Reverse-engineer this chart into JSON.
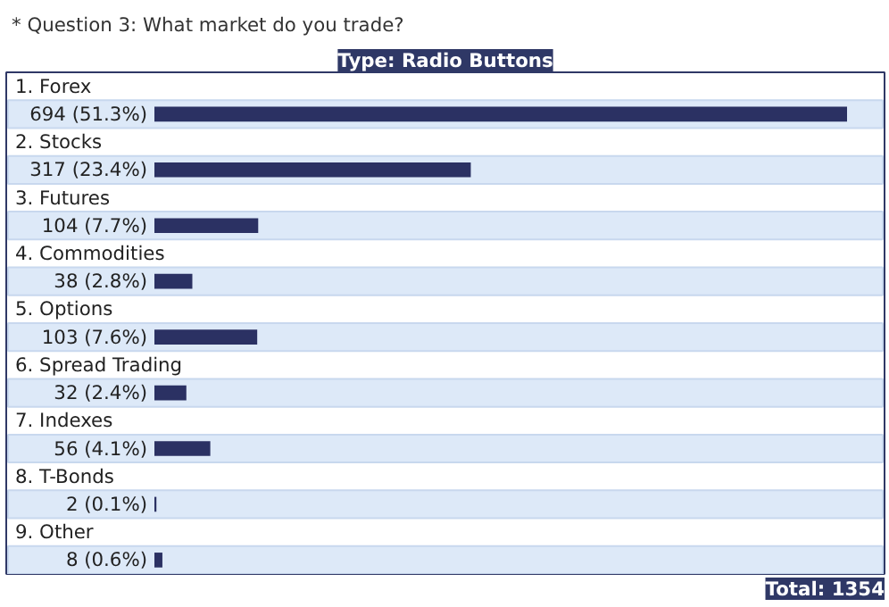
{
  "chart_data": {
    "type": "bar",
    "orientation": "horizontal",
    "title": "* Question 3: What market do you trade?",
    "categories": [
      "1. Forex",
      "2. Stocks",
      "3. Futures",
      "4. Commodities",
      "5. Options",
      "6. Spread Trading",
      "7. Indexes",
      "8. T-Bonds",
      "9. Other"
    ],
    "values": [
      694,
      317,
      104,
      38,
      103,
      32,
      56,
      2,
      8
    ],
    "value_labels": [
      "694 (51.3%)",
      "317 (23.4%)",
      "104 (7.7%)",
      "38 (2.8%)",
      "103 (7.6%)",
      "32 (2.4%)",
      "56 (4.1%)",
      "2 (0.1%)",
      "8 (0.6%)"
    ],
    "color": "#2b3163",
    "annotations": [
      "Type: Radio Buttons",
      "Total: 1354"
    ]
  }
}
